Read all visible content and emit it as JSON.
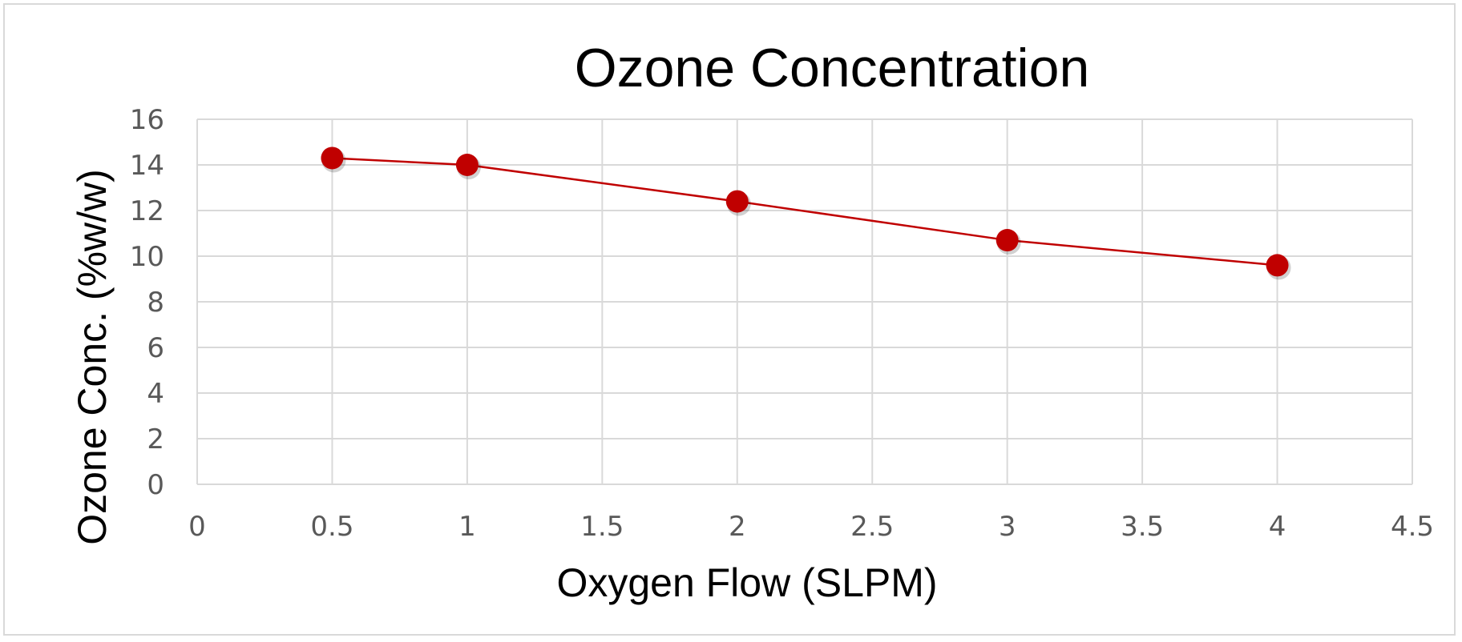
{
  "chart_data": {
    "type": "scatter",
    "title": "Ozone Concentration",
    "xlabel": "Oxygen Flow (SLPM)",
    "ylabel": "Ozone Conc. (%w/w)",
    "xlim": [
      0,
      4.5
    ],
    "ylim": [
      0,
      16
    ],
    "xticks": [
      0,
      0.5,
      1,
      1.5,
      2,
      2.5,
      3,
      3.5,
      4,
      4.5
    ],
    "yticks": [
      0,
      2,
      4,
      6,
      8,
      10,
      12,
      14,
      16
    ],
    "xtick_labels": [
      "0",
      "0.5",
      "1",
      "1.5",
      "2",
      "2.5",
      "3",
      "3.5",
      "4",
      "4.5"
    ],
    "ytick_labels": [
      "0",
      "2",
      "4",
      "6",
      "8",
      "10",
      "12",
      "14",
      "16"
    ],
    "grid": true,
    "legend": "none",
    "series": [
      {
        "x": [
          0.5,
          1,
          2,
          3,
          4
        ],
        "y": [
          14.3,
          14.0,
          12.4,
          10.7,
          9.6
        ],
        "color": "#c00000",
        "marker": "circle",
        "line": "straight"
      }
    ]
  }
}
